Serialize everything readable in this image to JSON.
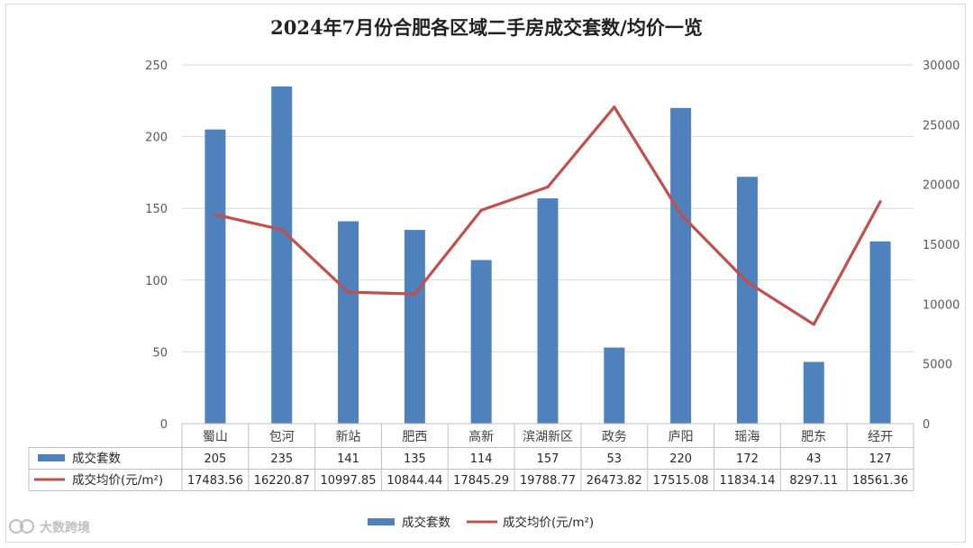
{
  "chart_data": {
    "type": "bar",
    "title": "2024年7月份合肥各区域二手房成交套数/均价一览",
    "categories": [
      "蜀山",
      "包河",
      "新站",
      "肥西",
      "高新",
      "滨湖新区",
      "政务",
      "庐阳",
      "瑶海",
      "肥东",
      "经开"
    ],
    "series": [
      {
        "name": "成交套数",
        "type": "bar",
        "axis": "left",
        "color": "#4f81bd",
        "values": [
          205,
          235,
          141,
          135,
          114,
          157,
          53,
          220,
          172,
          43,
          127
        ]
      },
      {
        "name": "成交均价(元/m²)",
        "type": "line",
        "axis": "right",
        "color": "#c0504d",
        "values": [
          17483.56,
          16220.87,
          10997.85,
          10844.44,
          17845.29,
          19788.77,
          26473.82,
          17515.08,
          11834.14,
          8297.11,
          18561.36
        ],
        "labels": [
          "17483.56",
          "16220.87",
          "10997.85",
          "10844.44",
          "17845.29",
          "19788.77",
          "26473.82",
          "17515.08",
          "11834.14",
          "8297.11",
          "18561.36"
        ]
      }
    ],
    "y_left": {
      "min": 0,
      "max": 250,
      "ticks": [
        0,
        50,
        100,
        150,
        200,
        250
      ]
    },
    "y_right": {
      "min": 0,
      "max": 30000,
      "ticks": [
        0,
        5000,
        10000,
        15000,
        20000,
        25000,
        30000
      ]
    },
    "grid": true,
    "data_table": true,
    "legend_position": "bottom"
  },
  "watermark": {
    "text": "大数跨境",
    "icon": "logo-icon"
  }
}
